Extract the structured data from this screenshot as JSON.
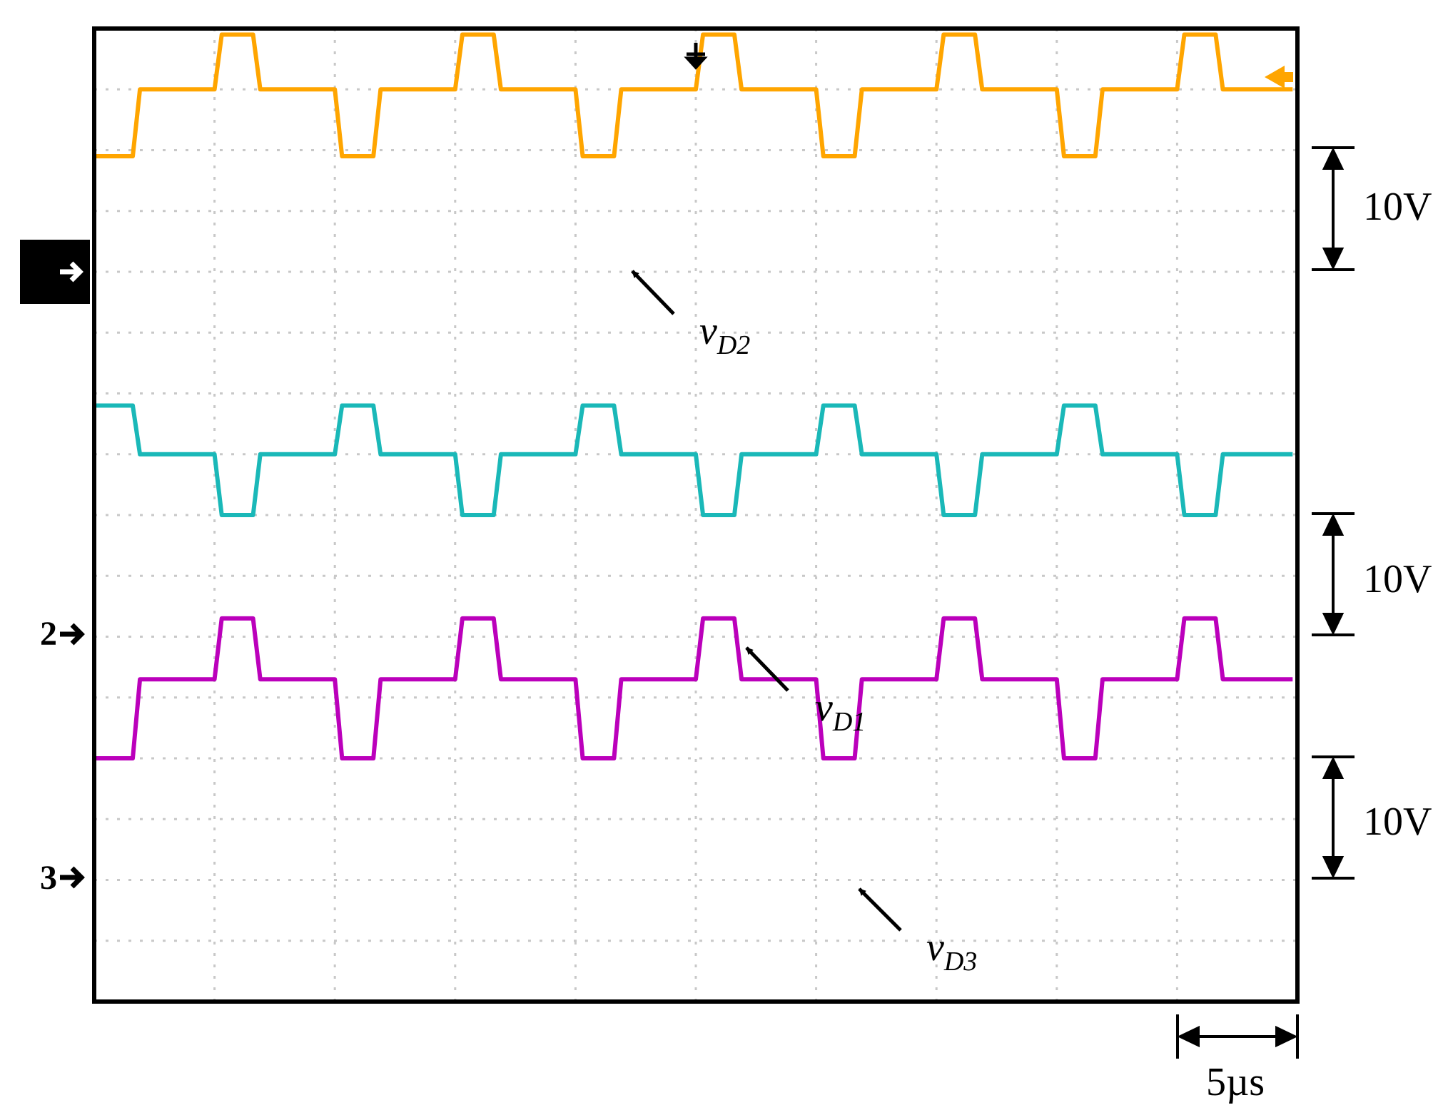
{
  "chart_data": {
    "type": "line",
    "title": "",
    "xlabel": "",
    "ylabel": "",
    "x_units": "µs",
    "y_units": "V",
    "time_per_div": 5,
    "time_divisions": 10,
    "voltage_divisions": 16,
    "xlim": [
      0,
      50
    ],
    "ylim": [
      0,
      80
    ],
    "grid": true,
    "scale_bars": [
      {
        "channel": 1,
        "label": "10V"
      },
      {
        "channel": 2,
        "label": "10V"
      },
      {
        "channel": 3,
        "label": "10V"
      },
      {
        "axis": "time",
        "label": "5µs"
      }
    ],
    "series": [
      {
        "name": "vD2",
        "label_main": "v",
        "label_sub": "D2",
        "channel_marker": "1",
        "color": "#ffa500",
        "ground_level_V": 69.5,
        "x": [
          0,
          0.2,
          1.6,
          1.9,
          5.0,
          5.3,
          6.6,
          6.9,
          10.0,
          10.3,
          11.6,
          11.9,
          15.0,
          15.3,
          16.6,
          16.9,
          20.0,
          20.3,
          21.6,
          21.9,
          25.0,
          25.3,
          26.6,
          26.9,
          30.0,
          30.3,
          31.6,
          31.9,
          35.0,
          35.3,
          36.6,
          36.9,
          40.0,
          40.3,
          41.6,
          41.9,
          45.0,
          45.3,
          46.6,
          46.9,
          49.8
        ],
        "y": [
          69.5,
          69.5,
          69.5,
          75,
          75,
          79.5,
          79.5,
          75,
          75,
          69.5,
          69.5,
          75,
          75,
          79.5,
          79.5,
          75,
          75,
          69.5,
          69.5,
          75,
          75,
          79.5,
          79.5,
          75,
          75,
          69.5,
          69.5,
          75,
          75,
          79.5,
          79.5,
          75,
          75,
          69.5,
          69.5,
          75,
          75,
          79.5,
          79.5,
          75,
          75
        ]
      },
      {
        "name": "vD1",
        "label_main": "v",
        "label_sub": "D1",
        "channel_marker": "2",
        "color": "#1ab8b8",
        "ground_level_V": 40,
        "x": [
          0,
          0.2,
          1.6,
          1.9,
          5.0,
          5.3,
          6.6,
          6.9,
          10.0,
          10.3,
          11.6,
          11.9,
          15.0,
          15.3,
          16.6,
          16.9,
          20.0,
          20.3,
          21.6,
          21.9,
          25.0,
          25.3,
          26.6,
          26.9,
          30.0,
          30.3,
          31.6,
          31.9,
          35.0,
          35.3,
          36.6,
          36.9,
          40.0,
          40.3,
          41.6,
          41.9,
          45.0,
          45.3,
          46.6,
          46.9,
          49.8
        ],
        "y": [
          49,
          49,
          49,
          45,
          45,
          40,
          40,
          45,
          45,
          49,
          49,
          45,
          45,
          40,
          40,
          45,
          45,
          49,
          49,
          45,
          45,
          40,
          40,
          45,
          45,
          49,
          49,
          45,
          45,
          40,
          40,
          45,
          45,
          49,
          49,
          45,
          45,
          40,
          40,
          45,
          45
        ]
      },
      {
        "name": "vD3",
        "label_main": "v",
        "label_sub": "D3",
        "channel_marker": "3",
        "color": "#bb00bb",
        "ground_level_V": 20,
        "x": [
          0,
          0.2,
          1.6,
          1.9,
          5.0,
          5.3,
          6.6,
          6.9,
          10.0,
          10.3,
          11.6,
          11.9,
          15.0,
          15.3,
          16.6,
          16.9,
          20.0,
          20.3,
          21.6,
          21.9,
          25.0,
          25.3,
          26.6,
          26.9,
          30.0,
          30.3,
          31.6,
          31.9,
          35.0,
          35.3,
          36.6,
          36.9,
          40.0,
          40.3,
          41.6,
          41.9,
          45.0,
          45.3,
          46.6,
          46.9,
          49.8
        ],
        "y": [
          20,
          20,
          20,
          26.5,
          26.5,
          31.5,
          31.5,
          26.5,
          26.5,
          20,
          20,
          26.5,
          26.5,
          31.5,
          31.5,
          26.5,
          26.5,
          20,
          20,
          26.5,
          26.5,
          31.5,
          31.5,
          26.5,
          26.5,
          20,
          20,
          26.5,
          26.5,
          31.5,
          31.5,
          26.5,
          26.5,
          20,
          20,
          26.5,
          26.5,
          31.5,
          31.5,
          26.5,
          26.5
        ]
      }
    ]
  }
}
